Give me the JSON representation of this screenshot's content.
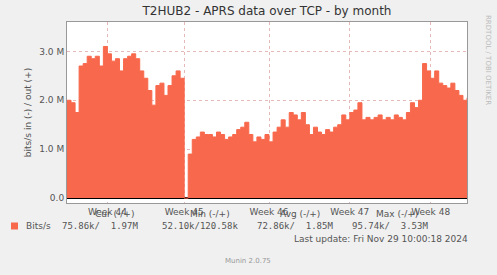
{
  "chart_data": {
    "type": "area",
    "title": "T2HUB2 - APRS data over TCP - by month",
    "y_label": "bits/s in (-) / out (+)",
    "categories": [
      null,
      null,
      null,
      null,
      null,
      null,
      null,
      null,
      null,
      null,
      "Week 44",
      null,
      null,
      null,
      null,
      null,
      null,
      null,
      null,
      null,
      null,
      null,
      null,
      null,
      null,
      null,
      null,
      null,
      null,
      "Week 45",
      null,
      null,
      null,
      null,
      null,
      null,
      null,
      null,
      null,
      null,
      null,
      null,
      null,
      null,
      null,
      null,
      null,
      null,
      null,
      null,
      "Week 46",
      null,
      null,
      null,
      null,
      null,
      null,
      null,
      null,
      null,
      null,
      null,
      null,
      null,
      null,
      null,
      null,
      null,
      null,
      null,
      "Week 47",
      null,
      null,
      null,
      null,
      null,
      null,
      null,
      null,
      null,
      null,
      null,
      null,
      null,
      null,
      null,
      null,
      null,
      null,
      null,
      "Week 48",
      null,
      null,
      null,
      null,
      null,
      null,
      null,
      null,
      null
    ],
    "series": [
      {
        "name": "Bits/s",
        "color": "#f8684c",
        "values": [
          2000000,
          1950000,
          1750000,
          2700000,
          2750000,
          2900000,
          2850000,
          2900000,
          2700000,
          3100000,
          2950000,
          2800000,
          2850000,
          2600000,
          2850000,
          2900000,
          2950000,
          2850000,
          2600000,
          2450000,
          2200000,
          1900000,
          2300000,
          2350000,
          2100000,
          2300000,
          2500000,
          2600000,
          2450000,
          0,
          900000,
          1200000,
          1250000,
          1350000,
          1300000,
          1300000,
          1250000,
          1350000,
          1300000,
          1200000,
          1250000,
          1300000,
          1400000,
          1450000,
          1550000,
          1300000,
          1150000,
          1250000,
          1200000,
          1300000,
          1150000,
          1350000,
          1450000,
          1600000,
          1450000,
          1750000,
          1700000,
          1600000,
          1750000,
          1500000,
          1300000,
          1450000,
          1350000,
          1300000,
          1400000,
          1350000,
          1450000,
          1500000,
          1700000,
          1600000,
          1750000,
          1800000,
          1950000,
          1600000,
          1650000,
          1600000,
          1650000,
          1700000,
          1600000,
          1650000,
          1600000,
          1700000,
          1650000,
          1600000,
          1750000,
          1950000,
          1850000,
          2000000,
          2750000,
          2600000,
          2450000,
          2600000,
          2350000,
          2300000,
          2250000,
          2350000,
          2200000,
          2100000,
          2000000,
          2050000
        ]
      }
    ],
    "ylim": [
      -100000,
      3600000
    ],
    "yticks": [
      {
        "value": 0,
        "label": "0.0"
      },
      {
        "value": 1000000,
        "label": "1.0 M"
      },
      {
        "value": 2000000,
        "label": "2.0 M"
      },
      {
        "value": 3000000,
        "label": "3.0 M"
      }
    ],
    "grid": true,
    "stats": {
      "columns": [
        "Cur (-/+)",
        "Min (-/+)",
        "Avg (-/+)",
        "Max (-/+)"
      ],
      "rows": [
        {
          "name": "Bits/s",
          "color": "#f8684c",
          "cells": [
            "75.86k/  1.97M",
            "52.10k/120.58k",
            "72.86k/  1.85M",
            "95.74k/  3.53M"
          ]
        }
      ]
    },
    "annotations": [
      "Last update: Fri Nov 29 10:00:18 2024",
      "Munin 2.0.75",
      "RRDTOOL / TOBI OETIKER"
    ]
  }
}
